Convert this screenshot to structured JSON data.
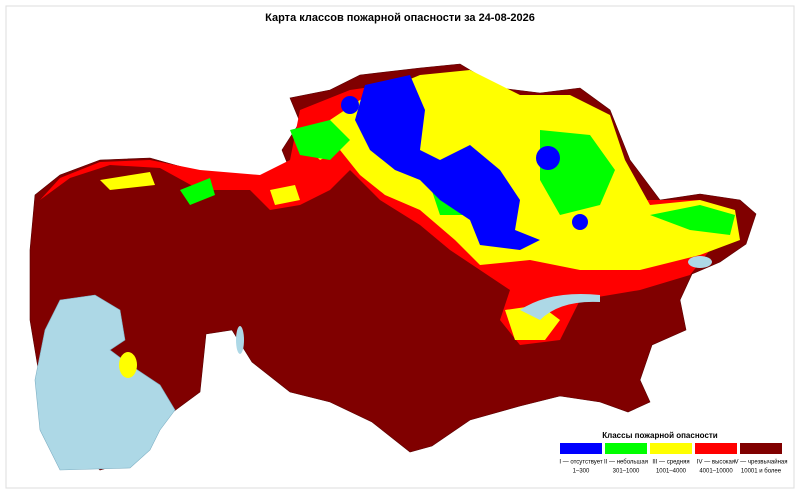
{
  "title": "Карта классов пожарной опасности за 24-08-2026",
  "legend": {
    "title": "Классы пожарной опасности",
    "items": [
      {
        "label": "I — отсутствует",
        "range": "1–300",
        "color": "#0000ff"
      },
      {
        "label": "II — небольшая",
        "range": "301–1000",
        "color": "#00ff00"
      },
      {
        "label": "III — средняя",
        "range": "1001–4000",
        "color": "#ffff00"
      },
      {
        "label": "IV — высокая",
        "range": "4001–10000",
        "color": "#ff0000"
      },
      {
        "label": "V — чрезвычайная",
        "range": "10001 и более",
        "color": "#800000"
      }
    ]
  }
}
